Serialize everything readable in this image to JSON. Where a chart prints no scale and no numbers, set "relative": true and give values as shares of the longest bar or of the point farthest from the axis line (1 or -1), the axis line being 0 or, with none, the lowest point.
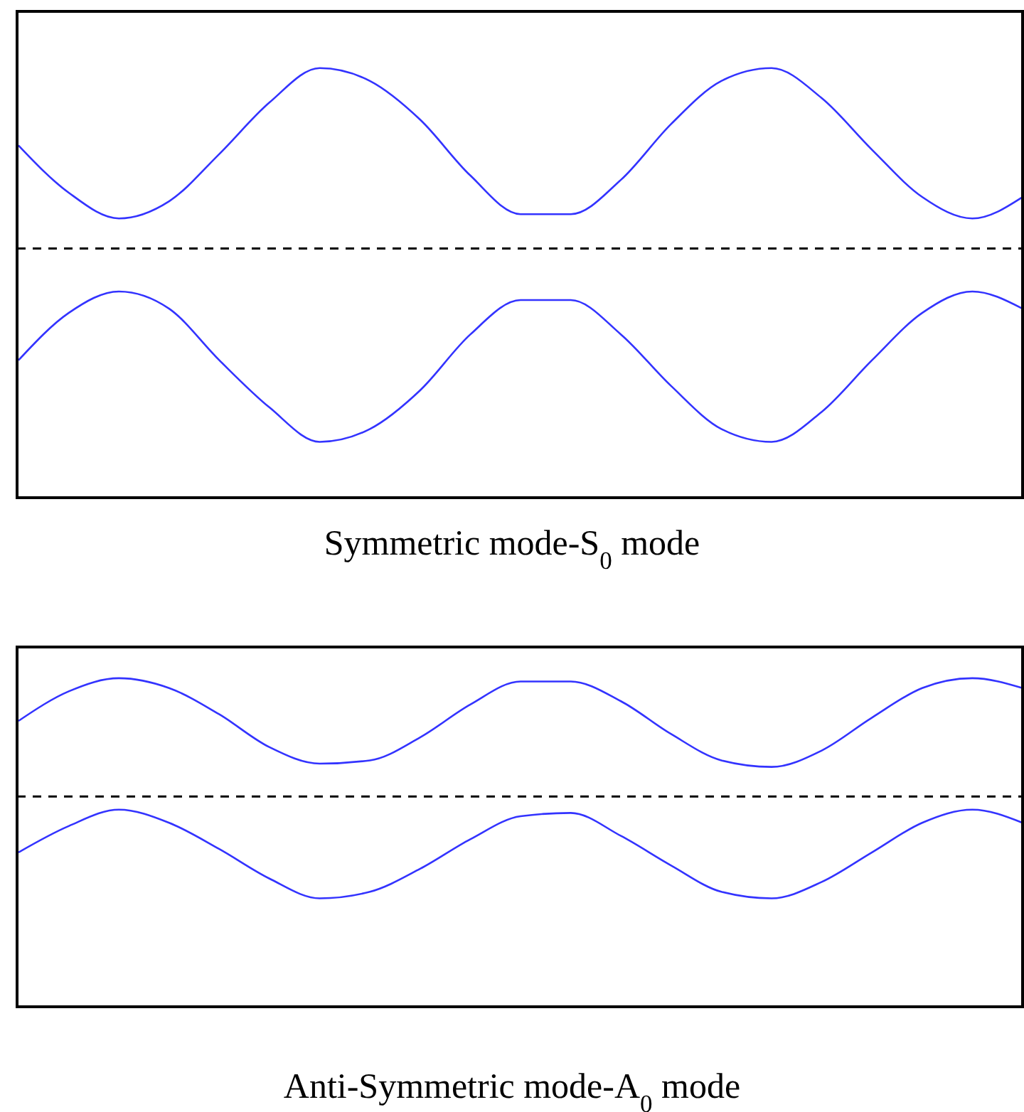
{
  "chart_data": [
    {
      "type": "line",
      "title": "Symmetric mode-S$_{0}$ mode",
      "relative": true,
      "categories": [
        null,
        null,
        null,
        null,
        null,
        null,
        null,
        null,
        null,
        null,
        null,
        null,
        null,
        null,
        null,
        null,
        null,
        null,
        null,
        null,
        null
      ],
      "series": [
        {
          "color": "#3333ff",
          "values": [
            0.82,
            0.71,
            0.65,
            0.69,
            0.8,
            0.92,
            1,
            0.97,
            0.88,
            0.75,
            0.66,
            0.66,
            0.74,
            0.87,
            0.97,
            1,
            0.93,
            0.81,
            0.7,
            0.65,
            0.7
          ]
        },
        {
          "color": "#3333ff",
          "values": [
            0.32,
            0.43,
            0.48,
            0.44,
            0.32,
            0.21,
            0.13,
            0.16,
            0.25,
            0.38,
            0.46,
            0.46,
            0.38,
            0.26,
            0.16,
            0.13,
            0.2,
            0.32,
            0.43,
            0.48,
            0.44
          ]
        }
      ],
      "ref_lines": [
        {
          "axis": "y",
          "value": 0.58,
          "color": "#000000",
          "line_style": "dashed"
        }
      ],
      "marker": "none",
      "line_style": "solid"
    },
    {
      "type": "line",
      "title": "Anti-Symmetric mode-A$_{0}$ mode",
      "relative": true,
      "categories": [
        null,
        null,
        null,
        null,
        null,
        null,
        null,
        null,
        null,
        null,
        null,
        null,
        null,
        null,
        null,
        null,
        null,
        null,
        null,
        null,
        null
      ],
      "series": [
        {
          "color": "#3333ff",
          "values": [
            0.87,
            0.96,
            1,
            0.97,
            0.89,
            0.79,
            0.74,
            0.75,
            0.82,
            0.92,
            0.99,
            0.99,
            0.93,
            0.83,
            0.75,
            0.73,
            0.78,
            0.88,
            0.97,
            1,
            0.97
          ]
        },
        {
          "color": "#3333ff",
          "values": [
            0.47,
            0.55,
            0.6,
            0.56,
            0.48,
            0.39,
            0.33,
            0.35,
            0.42,
            0.51,
            0.58,
            0.59,
            0.52,
            0.43,
            0.35,
            0.33,
            0.38,
            0.47,
            0.56,
            0.6,
            0.56
          ]
        }
      ],
      "ref_lines": [
        {
          "axis": "y",
          "value": 0.64,
          "color": "#000000",
          "line_style": "dashed"
        }
      ],
      "marker": "none",
      "line_style": "solid"
    }
  ]
}
